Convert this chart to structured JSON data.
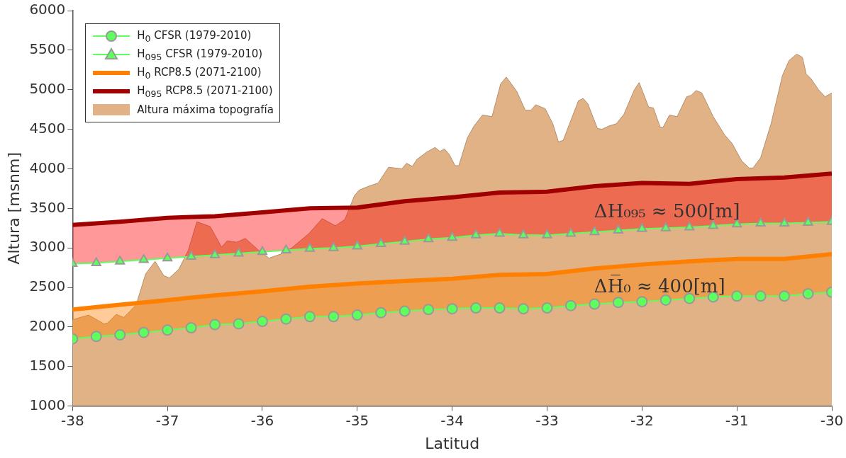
{
  "chart_data": {
    "type": "line",
    "xlabel": "Latitud",
    "ylabel": "Altura [msnm]",
    "xlim": [
      -38,
      -30
    ],
    "ylim": [
      1000,
      6000
    ],
    "xticks": [
      -38,
      -37,
      -36,
      -35,
      -34,
      -33,
      -32,
      -31,
      -30
    ],
    "yticks": [
      1000,
      1500,
      2000,
      2500,
      3000,
      3500,
      4000,
      4500,
      5000,
      5500,
      6000
    ],
    "grid": false,
    "legend": "top left",
    "annotations": [
      "ΔH₀₉₅ ≈ 500[m]",
      "ΔH̅₀ ≈ 400[m]"
    ],
    "series": [
      {
        "name": "H$_{0}$ CFSR (1979-2010)",
        "color": "#5cff5c",
        "marker": "circle",
        "x": [
          -38,
          -37.75,
          -37.5,
          -37.25,
          -37,
          -36.75,
          -36.5,
          -36.25,
          -36,
          -35.75,
          -35.5,
          -35.25,
          -35,
          -34.75,
          -34.5,
          -34.25,
          -34,
          -33.75,
          -33.5,
          -33.25,
          -33,
          -32.75,
          -32.5,
          -32.25,
          -32,
          -31.75,
          -31.5,
          -31.25,
          -31,
          -30.75,
          -30.5,
          -30.25,
          -30
        ],
        "values": [
          1850,
          1880,
          1900,
          1930,
          1960,
          1990,
          2030,
          2040,
          2070,
          2100,
          2130,
          2130,
          2150,
          2180,
          2200,
          2220,
          2230,
          2240,
          2240,
          2230,
          2240,
          2270,
          2290,
          2310,
          2320,
          2340,
          2360,
          2380,
          2390,
          2390,
          2390,
          2420,
          2440
        ]
      },
      {
        "name": "H$_{095}$ CFSR (1979-2010)",
        "color": "#5cff5c",
        "marker": "triangle",
        "x": [
          -38,
          -37.75,
          -37.5,
          -37.25,
          -37,
          -36.75,
          -36.5,
          -36.25,
          -36,
          -35.75,
          -35.5,
          -35.25,
          -35,
          -34.75,
          -34.5,
          -34.25,
          -34,
          -33.75,
          -33.5,
          -33.25,
          -33,
          -32.75,
          -32.5,
          -32.25,
          -32,
          -31.75,
          -31.5,
          -31.25,
          -31,
          -30.75,
          -30.5,
          -30.25,
          -30
        ],
        "values": [
          2800,
          2810,
          2830,
          2850,
          2870,
          2890,
          2910,
          2930,
          2950,
          2970,
          2990,
          3000,
          3020,
          3050,
          3080,
          3110,
          3130,
          3160,
          3180,
          3160,
          3160,
          3180,
          3200,
          3220,
          3240,
          3250,
          3260,
          3280,
          3300,
          3310,
          3310,
          3320,
          3330
        ]
      },
      {
        "name": "H$_{0}$ RCP8.5 (2071-2100)",
        "color": "#ff7f00",
        "marker": "none",
        "x": [
          -38,
          -37.5,
          -37,
          -36.5,
          -36,
          -35.5,
          -35,
          -34.5,
          -34,
          -33.5,
          -33,
          -32.5,
          -32,
          -31.5,
          -31,
          -30.5,
          -30
        ],
        "values": [
          2220,
          2280,
          2340,
          2400,
          2450,
          2510,
          2550,
          2580,
          2610,
          2660,
          2670,
          2740,
          2790,
          2830,
          2860,
          2860,
          2920
        ],
        "lower": [
          1850,
          1900,
          1960,
          2030,
          2070,
          2130,
          2150,
          2200,
          2230,
          2240,
          2240,
          2290,
          2320,
          2360,
          2390,
          2390,
          2440
        ],
        "upper": [
          2220,
          2280,
          2340,
          2400,
          2450,
          2510,
          2550,
          2580,
          2610,
          2660,
          2670,
          2740,
          2790,
          2830,
          2860,
          2860,
          2920
        ]
      },
      {
        "name": "H$_{095}$ RCP8.5 (2071-2100)",
        "color": "#a00000",
        "marker": "none",
        "x": [
          -38,
          -37.5,
          -37,
          -36.5,
          -36,
          -35.5,
          -35,
          -34.5,
          -34,
          -33.5,
          -33,
          -32.5,
          -32,
          -31.5,
          -31,
          -30.5,
          -30
        ],
        "values": [
          3290,
          3330,
          3380,
          3400,
          3450,
          3500,
          3510,
          3590,
          3640,
          3700,
          3710,
          3780,
          3820,
          3810,
          3870,
          3890,
          3940
        ],
        "lower": [
          2800,
          2830,
          2870,
          2910,
          2950,
          2990,
          3020,
          3080,
          3130,
          3180,
          3160,
          3200,
          3240,
          3260,
          3300,
          3310,
          3330
        ],
        "upper": [
          3290,
          3330,
          3380,
          3400,
          3450,
          3500,
          3510,
          3590,
          3640,
          3700,
          3710,
          3780,
          3820,
          3810,
          3870,
          3890,
          3940
        ]
      },
      {
        "name": "Altura máxima topografía",
        "type": "area",
        "color": "#e1b286",
        "x": [
          -38,
          -37.92,
          -37.83,
          -37.67,
          -37.63,
          -37.54,
          -37.46,
          -37.33,
          -37.23,
          -37.13,
          -37.04,
          -36.98,
          -36.88,
          -36.78,
          -36.69,
          -36.55,
          -36.43,
          -36.37,
          -36.27,
          -36.18,
          -36.04,
          -35.93,
          -35.81,
          -35.69,
          -35.51,
          -35.37,
          -35.23,
          -35.13,
          -35.03,
          -34.98,
          -34.88,
          -34.78,
          -34.67,
          -34.53,
          -34.48,
          -34.42,
          -34.37,
          -34.27,
          -34.18,
          -34.13,
          -34.08,
          -34.03,
          -33.97,
          -33.93,
          -33.84,
          -33.77,
          -33.68,
          -33.58,
          -33.49,
          -33.43,
          -33.32,
          -33.23,
          -33.17,
          -33.12,
          -33.02,
          -32.94,
          -32.88,
          -32.83,
          -32.67,
          -32.62,
          -32.57,
          -32.47,
          -32.42,
          -32.35,
          -32.27,
          -32.19,
          -32.08,
          -32.03,
          -31.93,
          -31.88,
          -31.81,
          -31.78,
          -31.71,
          -31.63,
          -31.53,
          -31.48,
          -31.43,
          -31.37,
          -31.25,
          -31.13,
          -31.05,
          -30.95,
          -30.87,
          -30.83,
          -30.75,
          -30.64,
          -30.52,
          -30.45,
          -30.37,
          -30.31,
          -30.27,
          -30.22,
          -30.14,
          -30.07,
          -30
        ],
        "values": [
          2090,
          2120,
          2150,
          2040,
          2050,
          2160,
          2120,
          2280,
          2670,
          2830,
          2650,
          2620,
          2730,
          2970,
          3330,
          3270,
          3010,
          3090,
          3070,
          3120,
          2970,
          2870,
          2920,
          3000,
          3180,
          3370,
          3280,
          3360,
          3660,
          3730,
          3780,
          3820,
          4020,
          4000,
          4070,
          4030,
          4120,
          4210,
          4270,
          4220,
          4250,
          4180,
          4040,
          4040,
          4390,
          4540,
          4680,
          4660,
          5070,
          5160,
          4980,
          4740,
          4740,
          4810,
          4760,
          4570,
          4340,
          4360,
          4860,
          4890,
          4820,
          4510,
          4500,
          4540,
          4570,
          4690,
          5000,
          5090,
          4780,
          4770,
          4530,
          4520,
          4680,
          4660,
          4910,
          4930,
          4990,
          4960,
          4660,
          4430,
          4320,
          4100,
          4010,
          4010,
          4140,
          4570,
          5180,
          5370,
          5450,
          5410,
          5200,
          5140,
          5000,
          4910,
          4960
        ]
      }
    ]
  }
}
